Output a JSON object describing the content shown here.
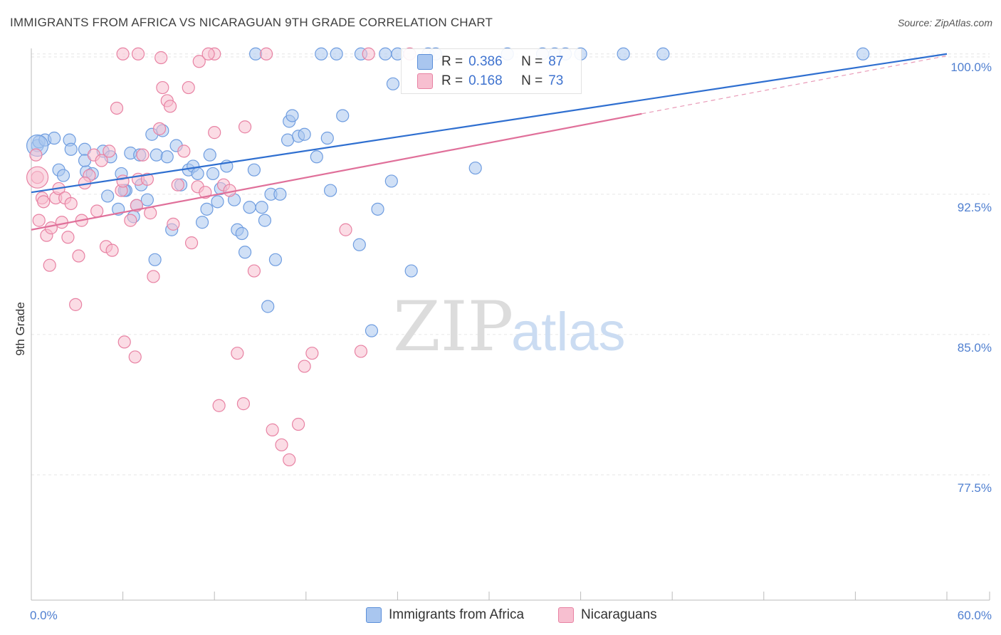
{
  "title": "IMMIGRANTS FROM AFRICA VS NICARAGUAN 9TH GRADE CORRELATION CHART",
  "source": "Source: ZipAtlas.com",
  "watermark": {
    "zip": "ZIP",
    "atlas": "atlas"
  },
  "legend": {
    "rows": [
      {
        "r_label": "R =",
        "r_value": "0.386",
        "n_label": "N =",
        "n_value": "87",
        "color": "#a9c6ef",
        "border": "#5b8fd9"
      },
      {
        "r_label": "R =",
        "r_value": "0.168",
        "n_label": "N =",
        "n_value": "73",
        "color": "#f7bfd0",
        "border": "#e882a3"
      }
    ]
  },
  "bottom_legend": [
    {
      "label": "Immigrants from Africa",
      "color": "#a9c6ef",
      "border": "#5b8fd9"
    },
    {
      "label": "Nicaraguans",
      "color": "#f7bfd0",
      "border": "#e882a3"
    }
  ],
  "chart_data": {
    "type": "scatter",
    "title": "IMMIGRANTS FROM AFRICA VS NICARAGUAN 9TH GRADE CORRELATION CHART",
    "xlabel": "",
    "ylabel": "9th Grade",
    "xlim": [
      0,
      60
    ],
    "ylim": [
      70.8,
      100.6
    ],
    "x_tick_labels": [
      "0.0%",
      "60.0%"
    ],
    "y_ticks": [
      77.5,
      85.0,
      92.5,
      100.0
    ],
    "y_tick_labels": [
      "77.5%",
      "85.0%",
      "92.5%",
      "100.0%"
    ],
    "series": [
      {
        "name": "Immigrants from Africa",
        "color": "#6f9de0",
        "fill": "#a9c6ef",
        "trend": {
          "x0": 0,
          "y0": 92.6,
          "x1": 60,
          "y1": 100.0,
          "solid_to": 60,
          "line_color": "#2f6fd0"
        },
        "points": [
          [
            0.4,
            95.1
          ],
          [
            0.5,
            95.3
          ],
          [
            0.9,
            95.4
          ],
          [
            1.5,
            95.5
          ],
          [
            2.5,
            95.4
          ],
          [
            1.8,
            93.8
          ],
          [
            2.1,
            93.5
          ],
          [
            3.6,
            93.7
          ],
          [
            4.0,
            93.6
          ],
          [
            2.6,
            94.9
          ],
          [
            3.5,
            94.9
          ],
          [
            4.7,
            94.8
          ],
          [
            5.2,
            94.5
          ],
          [
            3.5,
            94.3
          ],
          [
            6.2,
            92.7
          ],
          [
            5.0,
            92.4
          ],
          [
            5.7,
            91.7
          ],
          [
            6.7,
            91.3
          ],
          [
            5.9,
            93.6
          ],
          [
            6.1,
            92.7
          ],
          [
            6.5,
            94.7
          ],
          [
            7.1,
            94.6
          ],
          [
            6.9,
            91.9
          ],
          [
            7.6,
            92.2
          ],
          [
            7.2,
            93.0
          ],
          [
            7.9,
            95.7
          ],
          [
            8.2,
            94.6
          ],
          [
            8.6,
            95.9
          ],
          [
            8.9,
            94.5
          ],
          [
            9.5,
            95.1
          ],
          [
            8.1,
            89.0
          ],
          [
            9.2,
            90.6
          ],
          [
            9.8,
            93.0
          ],
          [
            10.3,
            93.8
          ],
          [
            10.6,
            94.0
          ],
          [
            10.9,
            93.6
          ],
          [
            11.2,
            91.0
          ],
          [
            11.5,
            91.7
          ],
          [
            11.7,
            94.6
          ],
          [
            11.9,
            93.6
          ],
          [
            12.2,
            92.1
          ],
          [
            12.4,
            92.8
          ],
          [
            12.8,
            94.0
          ],
          [
            13.3,
            92.2
          ],
          [
            13.5,
            90.6
          ],
          [
            13.8,
            90.4
          ],
          [
            14.0,
            89.4
          ],
          [
            14.3,
            91.8
          ],
          [
            14.6,
            93.8
          ],
          [
            15.1,
            91.8
          ],
          [
            15.3,
            91.1
          ],
          [
            15.5,
            86.5
          ],
          [
            15.7,
            92.5
          ],
          [
            16.3,
            92.5
          ],
          [
            16.0,
            89.0
          ],
          [
            16.8,
            95.4
          ],
          [
            16.9,
            96.4
          ],
          [
            17.1,
            96.7
          ],
          [
            17.5,
            95.6
          ],
          [
            17.9,
            95.7
          ],
          [
            18.7,
            94.5
          ],
          [
            19.4,
            95.5
          ],
          [
            19.6,
            92.7
          ],
          [
            20.4,
            96.7
          ],
          [
            21.5,
            89.8
          ],
          [
            22.7,
            91.7
          ],
          [
            23.6,
            93.2
          ],
          [
            22.3,
            85.2
          ],
          [
            23.7,
            98.4
          ],
          [
            24.9,
            88.4
          ],
          [
            26.0,
            100.0
          ],
          [
            29.1,
            93.9
          ],
          [
            36.0,
            100.0
          ],
          [
            38.8,
            100.0
          ],
          [
            41.4,
            100.0
          ],
          [
            54.5,
            100.0
          ],
          [
            14.7,
            100.0
          ],
          [
            19.0,
            100.0
          ],
          [
            20.0,
            100.0
          ],
          [
            21.6,
            100.0
          ],
          [
            23.2,
            100.0
          ],
          [
            24.0,
            100.0
          ],
          [
            26.5,
            100.0
          ],
          [
            31.2,
            100.0
          ],
          [
            33.5,
            100.0
          ],
          [
            34.3,
            100.0
          ],
          [
            35.0,
            100.0
          ]
        ],
        "sizes_large": [
          [
            0.4,
            95.1
          ]
        ]
      },
      {
        "name": "Nicaraguans",
        "color": "#e882a3",
        "fill": "#f7bfd0",
        "trend": {
          "x0": 0,
          "y0": 90.6,
          "x1": 60,
          "y1": 99.9,
          "solid_to": 40,
          "line_color": "#e0709a"
        },
        "points": [
          [
            0.3,
            94.6
          ],
          [
            0.4,
            93.4
          ],
          [
            0.5,
            91.1
          ],
          [
            0.7,
            92.3
          ],
          [
            0.8,
            92.1
          ],
          [
            1.0,
            90.3
          ],
          [
            1.3,
            90.7
          ],
          [
            1.6,
            92.3
          ],
          [
            1.8,
            92.8
          ],
          [
            1.2,
            88.7
          ],
          [
            2.0,
            91.0
          ],
          [
            2.2,
            92.3
          ],
          [
            2.4,
            90.2
          ],
          [
            2.6,
            92.0
          ],
          [
            3.1,
            89.2
          ],
          [
            3.3,
            91.1
          ],
          [
            2.9,
            86.6
          ],
          [
            3.8,
            93.5
          ],
          [
            3.5,
            93.1
          ],
          [
            4.1,
            94.6
          ],
          [
            4.3,
            91.6
          ],
          [
            4.6,
            94.3
          ],
          [
            4.9,
            89.7
          ],
          [
            5.1,
            94.8
          ],
          [
            5.3,
            89.5
          ],
          [
            5.6,
            97.1
          ],
          [
            5.9,
            92.7
          ],
          [
            6.0,
            93.2
          ],
          [
            6.1,
            84.6
          ],
          [
            6.5,
            91.1
          ],
          [
            6.9,
            91.9
          ],
          [
            6.8,
            83.8
          ],
          [
            7.0,
            93.3
          ],
          [
            7.3,
            94.6
          ],
          [
            7.6,
            93.3
          ],
          [
            7.8,
            91.5
          ],
          [
            8.0,
            88.1
          ],
          [
            8.4,
            96.0
          ],
          [
            8.6,
            98.2
          ],
          [
            8.9,
            97.5
          ],
          [
            9.1,
            97.2
          ],
          [
            9.3,
            90.9
          ],
          [
            9.6,
            93.0
          ],
          [
            10.0,
            94.8
          ],
          [
            10.3,
            98.2
          ],
          [
            10.5,
            89.9
          ],
          [
            10.9,
            92.9
          ],
          [
            11.0,
            99.6
          ],
          [
            11.4,
            92.6
          ],
          [
            12.0,
            95.8
          ],
          [
            12.3,
            81.2
          ],
          [
            12.6,
            93.0
          ],
          [
            13.0,
            92.7
          ],
          [
            13.5,
            84.0
          ],
          [
            13.9,
            81.3
          ],
          [
            14.0,
            96.1
          ],
          [
            14.6,
            88.4
          ],
          [
            15.4,
            100.0
          ],
          [
            15.8,
            79.9
          ],
          [
            16.4,
            79.1
          ],
          [
            16.9,
            78.3
          ],
          [
            17.5,
            80.2
          ],
          [
            17.9,
            83.3
          ],
          [
            18.4,
            84.0
          ],
          [
            20.6,
            90.6
          ],
          [
            21.6,
            84.1
          ],
          [
            22.1,
            100.0
          ],
          [
            24.8,
            100.0
          ],
          [
            12.0,
            100.0
          ],
          [
            8.5,
            99.8
          ],
          [
            11.6,
            100.0
          ],
          [
            7.0,
            100.0
          ],
          [
            6.0,
            100.0
          ]
        ],
        "sizes_large": [
          [
            0.4,
            93.4
          ]
        ]
      }
    ]
  }
}
